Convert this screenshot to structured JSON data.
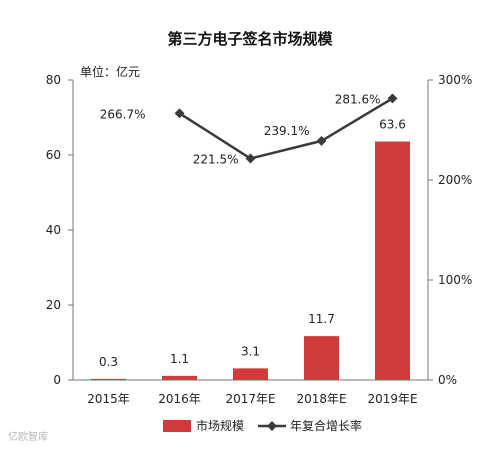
{
  "chart_data": {
    "type": "bar",
    "title": "第三方电子签名市场规模",
    "unit_label": "单位：亿元",
    "categories": [
      "2015年",
      "2016年",
      "2017年E",
      "2018年E",
      "2019年E"
    ],
    "series": [
      {
        "name": "市场规模",
        "type": "bar",
        "axis": "left",
        "color": "#d13b3b",
        "values": [
          0.3,
          1.1,
          3.1,
          11.7,
          63.6
        ],
        "labels": [
          "0.3",
          "1.1",
          "3.1",
          "11.7",
          "63.6"
        ]
      },
      {
        "name": "年复合增长率",
        "type": "line",
        "axis": "right",
        "color": "#3a3a3a",
        "values": [
          null,
          266.7,
          221.5,
          239.1,
          281.6
        ],
        "labels": [
          "",
          "266.7%",
          "221.5%",
          "239.1%",
          "281.6%"
        ]
      }
    ],
    "y_left": {
      "ylim": [
        0,
        80
      ],
      "ticks": [
        "0",
        "20",
        "40",
        "60",
        "80"
      ]
    },
    "y_right": {
      "ylim": [
        0,
        300
      ],
      "ticks": [
        "0%",
        "100%",
        "200%",
        "300%"
      ]
    },
    "grid": false,
    "legend_position": "bottom"
  },
  "watermark": "亿欧智库"
}
